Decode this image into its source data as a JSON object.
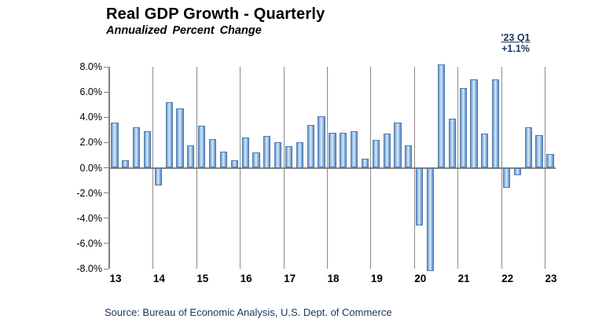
{
  "header": {
    "title": "Real GDP Growth - Quarterly",
    "subtitle": "Annualized Percent Change"
  },
  "annotation": {
    "label": "'23 Q1",
    "value": "+1.1%",
    "color": "#17375d"
  },
  "footer": {
    "source": "Source: Bureau of Economic Analysis, U.S. Dept. of Commerce",
    "color": "#17375d"
  },
  "chart_data": {
    "type": "bar",
    "title": "Real GDP Growth - Quarterly",
    "subtitle": "Annualized Percent Change",
    "unit": "percent change, annualized rate",
    "ylim": [
      -8,
      8
    ],
    "y_tick_interval": 2,
    "y_tick_labels": [
      "8.0%",
      "6.0%",
      "4.0%",
      "2.0%",
      "0.0%",
      "-2.0%",
      "-4.0%",
      "-6.0%",
      "-8.0%"
    ],
    "x_tick_labels": [
      "13",
      "14",
      "15",
      "16",
      "17",
      "18",
      "19",
      "20",
      "21",
      "22",
      "23"
    ],
    "grid": "vertical gridlines at each year boundary; single horizontal zero line",
    "legend": "none",
    "bar_color_edge": "#5b8cc4",
    "bar_color_center": "#dcebf9",
    "bar_border_color": "#527aa8",
    "axis_color": "#808080",
    "clip_note": "2020 Q2 and 2020 Q3 bars are clipped at the -8%/+8% axis limits",
    "series": [
      {
        "name": "Real GDP growth, quarterly annualized percent change",
        "points": [
          {
            "label": "2013 Q1",
            "value": 3.6
          },
          {
            "label": "2013 Q2",
            "value": 0.6
          },
          {
            "label": "2013 Q3",
            "value": 3.2
          },
          {
            "label": "2013 Q4",
            "value": 2.9
          },
          {
            "label": "2014 Q1",
            "value": -1.4
          },
          {
            "label": "2014 Q2",
            "value": 5.2
          },
          {
            "label": "2014 Q3",
            "value": 4.7
          },
          {
            "label": "2014 Q4",
            "value": 1.8
          },
          {
            "label": "2015 Q1",
            "value": 3.3
          },
          {
            "label": "2015 Q2",
            "value": 2.3
          },
          {
            "label": "2015 Q3",
            "value": 1.3
          },
          {
            "label": "2015 Q4",
            "value": 0.6
          },
          {
            "label": "2016 Q1",
            "value": 2.4
          },
          {
            "label": "2016 Q2",
            "value": 1.2
          },
          {
            "label": "2016 Q3",
            "value": 2.5
          },
          {
            "label": "2016 Q4",
            "value": 2.0
          },
          {
            "label": "2017 Q1",
            "value": 1.7
          },
          {
            "label": "2017 Q2",
            "value": 2.0
          },
          {
            "label": "2017 Q3",
            "value": 3.4
          },
          {
            "label": "2017 Q4",
            "value": 4.1
          },
          {
            "label": "2018 Q1",
            "value": 2.8
          },
          {
            "label": "2018 Q2",
            "value": 2.8
          },
          {
            "label": "2018 Q3",
            "value": 2.9
          },
          {
            "label": "2018 Q4",
            "value": 0.7
          },
          {
            "label": "2019 Q1",
            "value": 2.2
          },
          {
            "label": "2019 Q2",
            "value": 2.7
          },
          {
            "label": "2019 Q3",
            "value": 3.6
          },
          {
            "label": "2019 Q4",
            "value": 1.8
          },
          {
            "label": "2020 Q1",
            "value": -4.6
          },
          {
            "label": "2020 Q2",
            "value": -8.2,
            "clipped": true
          },
          {
            "label": "2020 Q3",
            "value": 8.2,
            "clipped": true
          },
          {
            "label": "2020 Q4",
            "value": 3.9
          },
          {
            "label": "2021 Q1",
            "value": 6.3
          },
          {
            "label": "2021 Q2",
            "value": 7.0
          },
          {
            "label": "2021 Q3",
            "value": 2.7
          },
          {
            "label": "2021 Q4",
            "value": 7.0
          },
          {
            "label": "2022 Q1",
            "value": -1.6
          },
          {
            "label": "2022 Q2",
            "value": -0.6
          },
          {
            "label": "2022 Q3",
            "value": 3.2
          },
          {
            "label": "2022 Q4",
            "value": 2.6
          },
          {
            "label": "2023 Q1",
            "value": 1.1
          }
        ]
      }
    ],
    "callout": {
      "text": "'23 Q1",
      "value": "+1.1%"
    }
  }
}
